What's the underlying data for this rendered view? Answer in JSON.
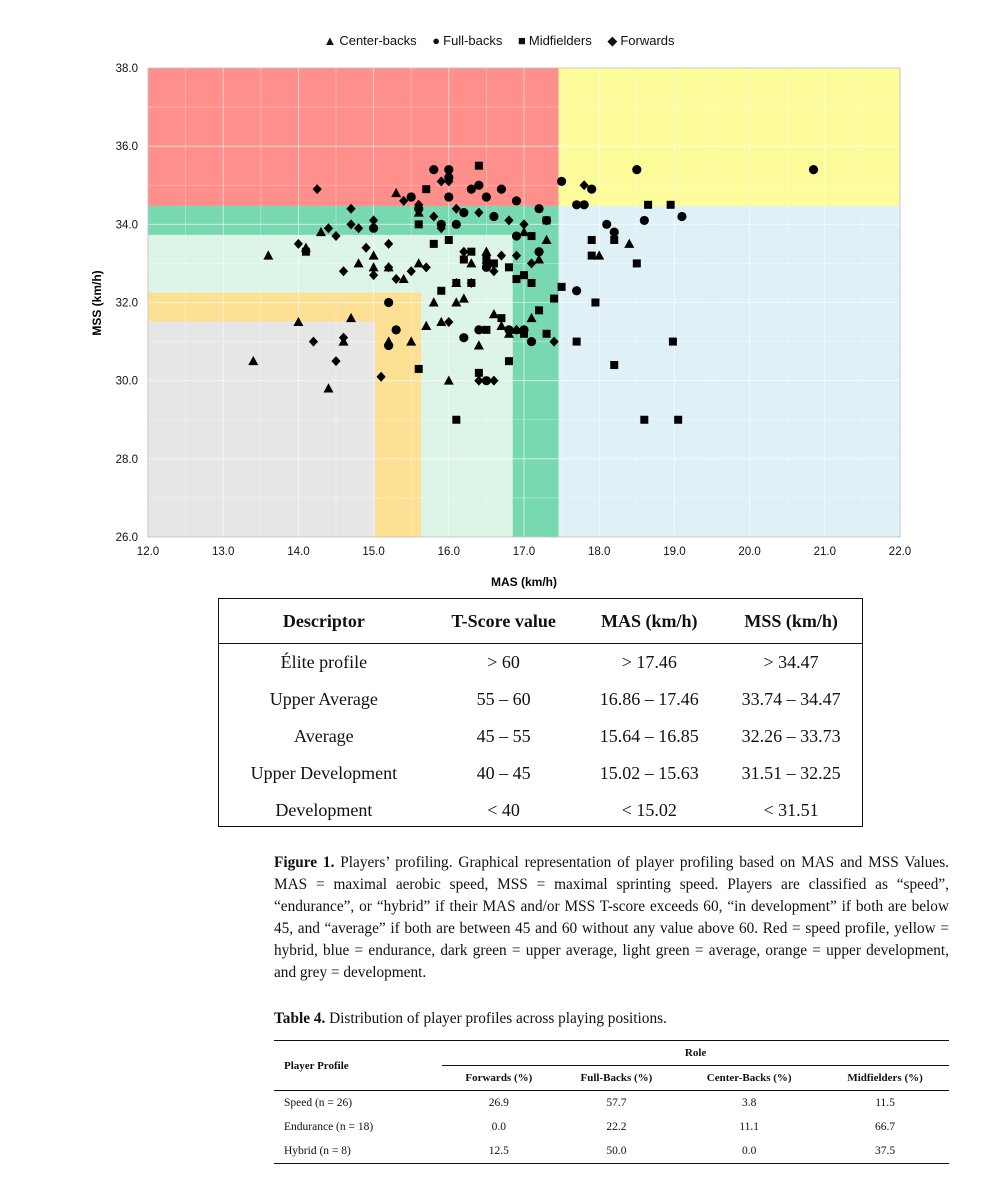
{
  "legend": [
    {
      "symbol": "▲",
      "label": "Center-backs"
    },
    {
      "symbol": "●",
      "label": "Full-backs"
    },
    {
      "symbol": "■",
      "label": "Midfielders"
    },
    {
      "symbol": "◆",
      "label": "Forwards"
    }
  ],
  "chart_data": {
    "type": "scatter",
    "xlabel": "MAS (km/h)",
    "ylabel": "MSS (km/h)",
    "xlim": [
      12.0,
      22.0
    ],
    "ylim": [
      26.0,
      38.0
    ],
    "xticks": [
      "12.0",
      "13.0",
      "14.0",
      "15.0",
      "16.0",
      "17.0",
      "18.0",
      "19.0",
      "20.0",
      "21.0",
      "22.0"
    ],
    "yticks": [
      "26.0",
      "28.0",
      "30.0",
      "32.0",
      "34.0",
      "36.0",
      "38.0"
    ],
    "grid": true,
    "legend_position": "top",
    "zones": [
      {
        "name": "speed",
        "color": "#ff8f8a",
        "x": [
          12.0,
          17.46
        ],
        "y": [
          34.47,
          38.0
        ]
      },
      {
        "name": "hybrid",
        "color": "#fcfc9a",
        "x": [
          17.46,
          22.0
        ],
        "y": [
          34.47,
          38.0
        ]
      },
      {
        "name": "endurance",
        "color": "#dff1f7",
        "x": [
          17.46,
          22.0
        ],
        "y": [
          26.0,
          34.47
        ]
      },
      {
        "name": "development",
        "color": "#e6e6e6",
        "x": [
          12.0,
          15.02
        ],
        "y": [
          26.0,
          31.51
        ]
      },
      {
        "name": "upper development",
        "color": "#fde093",
        "x": [
          12.0,
          15.63
        ],
        "y": [
          26.0,
          32.25
        ]
      },
      {
        "name": "average",
        "color": "#dcf5e6",
        "x": [
          12.0,
          16.85
        ],
        "y": [
          26.0,
          33.73
        ]
      },
      {
        "name": "upper average",
        "color": "#78d9b1",
        "x": [
          12.0,
          17.46
        ],
        "y": [
          26.0,
          34.47
        ]
      },
      {
        "name": "development-core",
        "color": "#e6e6e6",
        "x": [
          12.0,
          15.02
        ],
        "y": [
          26.0,
          31.51
        ]
      },
      {
        "name": "upper-development-core",
        "color": "#fde093",
        "x": [
          12.0,
          15.63
        ],
        "y": [
          26.0,
          32.25
        ]
      },
      {
        "name": "average-core",
        "color": "#dcf5e6",
        "x": [
          12.0,
          16.85
        ],
        "y": [
          26.0,
          33.73
        ]
      }
    ],
    "series": [
      {
        "name": "Center-backs",
        "marker": "triangle",
        "points": [
          [
            13.4,
            30.5
          ],
          [
            13.6,
            33.2
          ],
          [
            14.0,
            31.5
          ],
          [
            14.1,
            33.4
          ],
          [
            14.3,
            33.8
          ],
          [
            14.4,
            29.8
          ],
          [
            14.6,
            31.0
          ],
          [
            14.7,
            31.6
          ],
          [
            14.8,
            33.0
          ],
          [
            15.0,
            33.2
          ],
          [
            15.0,
            32.9
          ],
          [
            15.2,
            32.9
          ],
          [
            15.4,
            32.6
          ],
          [
            15.5,
            31.0
          ],
          [
            15.6,
            33.0
          ],
          [
            15.7,
            31.4
          ],
          [
            15.8,
            32.0
          ],
          [
            15.9,
            31.5
          ],
          [
            16.0,
            30.0
          ],
          [
            16.1,
            32.0
          ],
          [
            16.2,
            32.1
          ],
          [
            16.3,
            33.0
          ],
          [
            16.4,
            30.9
          ],
          [
            16.5,
            33.3
          ],
          [
            16.6,
            31.7
          ],
          [
            16.7,
            31.4
          ],
          [
            16.8,
            31.2
          ],
          [
            16.9,
            31.3
          ],
          [
            17.0,
            33.8
          ],
          [
            17.1,
            31.6
          ],
          [
            17.2,
            33.1
          ],
          [
            17.3,
            33.6
          ],
          [
            18.0,
            33.2
          ],
          [
            18.4,
            33.5
          ],
          [
            15.3,
            34.8
          ],
          [
            15.6,
            34.3
          ],
          [
            15.2,
            31.0
          ],
          [
            16.1,
            32.5
          ]
        ]
      },
      {
        "name": "Full-backs",
        "marker": "circle",
        "points": [
          [
            15.0,
            33.9
          ],
          [
            15.2,
            32.0
          ],
          [
            15.3,
            31.3
          ],
          [
            15.5,
            34.7
          ],
          [
            15.6,
            34.4
          ],
          [
            15.8,
            35.4
          ],
          [
            15.9,
            34.0
          ],
          [
            16.1,
            34.0
          ],
          [
            16.2,
            34.3
          ],
          [
            16.2,
            31.1
          ],
          [
            16.3,
            34.9
          ],
          [
            16.4,
            35.0
          ],
          [
            16.5,
            34.7
          ],
          [
            16.5,
            32.9
          ],
          [
            16.6,
            34.2
          ],
          [
            16.7,
            34.9
          ],
          [
            16.8,
            31.3
          ],
          [
            16.9,
            33.7
          ],
          [
            17.0,
            31.3
          ],
          [
            17.1,
            31.0
          ],
          [
            17.2,
            33.3
          ],
          [
            17.3,
            34.1
          ],
          [
            17.5,
            35.1
          ],
          [
            17.7,
            34.5
          ],
          [
            17.7,
            32.3
          ],
          [
            17.9,
            34.9
          ],
          [
            18.1,
            34.0
          ],
          [
            18.2,
            33.8
          ],
          [
            18.5,
            35.4
          ],
          [
            18.6,
            34.1
          ],
          [
            19.1,
            34.2
          ],
          [
            20.85,
            35.4
          ],
          [
            15.2,
            30.9
          ],
          [
            16.0,
            35.4
          ],
          [
            16.5,
            30.0
          ],
          [
            16.4,
            31.3
          ],
          [
            16.0,
            35.2
          ],
          [
            17.8,
            34.5
          ],
          [
            16.9,
            34.6
          ],
          [
            17.2,
            34.4
          ],
          [
            16.0,
            34.7
          ]
        ]
      },
      {
        "name": "Midfielders",
        "marker": "square",
        "points": [
          [
            14.1,
            33.3
          ],
          [
            15.6,
            30.3
          ],
          [
            15.7,
            34.9
          ],
          [
            15.8,
            33.5
          ],
          [
            15.9,
            32.3
          ],
          [
            16.0,
            33.6
          ],
          [
            16.1,
            32.5
          ],
          [
            16.1,
            29.0
          ],
          [
            16.2,
            33.1
          ],
          [
            16.3,
            33.3
          ],
          [
            16.3,
            32.5
          ],
          [
            16.4,
            30.2
          ],
          [
            16.5,
            33.1
          ],
          [
            16.5,
            31.3
          ],
          [
            16.6,
            33.0
          ],
          [
            16.7,
            31.6
          ],
          [
            16.8,
            30.5
          ],
          [
            16.8,
            32.9
          ],
          [
            16.9,
            32.6
          ],
          [
            17.0,
            32.7
          ],
          [
            17.0,
            31.2
          ],
          [
            17.1,
            32.5
          ],
          [
            17.1,
            33.7
          ],
          [
            17.2,
            31.8
          ],
          [
            17.3,
            34.1
          ],
          [
            17.4,
            32.1
          ],
          [
            17.5,
            32.4
          ],
          [
            17.7,
            31.0
          ],
          [
            17.9,
            33.6
          ],
          [
            17.95,
            32.0
          ],
          [
            18.2,
            33.6
          ],
          [
            18.2,
            30.4
          ],
          [
            18.5,
            33.0
          ],
          [
            18.6,
            29.0
          ],
          [
            18.65,
            34.5
          ],
          [
            18.95,
            34.5
          ],
          [
            18.98,
            31.0
          ],
          [
            19.05,
            29.0
          ],
          [
            15.6,
            34.0
          ],
          [
            16.4,
            35.5
          ],
          [
            17.9,
            33.2
          ],
          [
            17.3,
            31.2
          ]
        ]
      },
      {
        "name": "Forwards",
        "marker": "diamond",
        "points": [
          [
            14.25,
            34.9
          ],
          [
            14.0,
            33.5
          ],
          [
            14.4,
            33.9
          ],
          [
            14.5,
            33.7
          ],
          [
            14.6,
            32.8
          ],
          [
            14.7,
            34.0
          ],
          [
            14.8,
            33.9
          ],
          [
            14.9,
            33.4
          ],
          [
            15.0,
            34.1
          ],
          [
            15.2,
            32.9
          ],
          [
            15.3,
            32.6
          ],
          [
            15.4,
            34.6
          ],
          [
            15.5,
            32.8
          ],
          [
            15.6,
            34.5
          ],
          [
            15.7,
            32.9
          ],
          [
            15.8,
            34.2
          ],
          [
            15.9,
            33.9
          ],
          [
            16.0,
            35.1
          ],
          [
            16.0,
            31.5
          ],
          [
            16.1,
            34.4
          ],
          [
            16.2,
            33.3
          ],
          [
            16.3,
            32.5
          ],
          [
            16.4,
            34.3
          ],
          [
            16.5,
            33.0
          ],
          [
            16.6,
            32.8
          ],
          [
            16.7,
            33.2
          ],
          [
            16.8,
            34.1
          ],
          [
            16.9,
            33.2
          ],
          [
            17.0,
            34.0
          ],
          [
            17.1,
            33.0
          ],
          [
            17.4,
            31.0
          ],
          [
            17.8,
            35.0
          ],
          [
            14.2,
            31.0
          ],
          [
            14.5,
            30.5
          ],
          [
            14.6,
            31.1
          ],
          [
            15.1,
            30.1
          ],
          [
            15.2,
            33.5
          ],
          [
            16.4,
            30.0
          ],
          [
            16.6,
            30.0
          ],
          [
            16.9,
            31.3
          ],
          [
            14.7,
            34.4
          ],
          [
            15.0,
            32.7
          ],
          [
            15.9,
            35.1
          ]
        ]
      }
    ]
  },
  "descriptor_table": {
    "headers": [
      "Descriptor",
      "T-Score value",
      "MAS (km/h)",
      "MSS (km/h)"
    ],
    "rows": [
      [
        "Élite profile",
        "> 60",
        "> 17.46",
        "> 34.47"
      ],
      [
        "Upper Average",
        "55 – 60",
        "16.86 – 17.46",
        "33.74 – 34.47"
      ],
      [
        "Average",
        "45 – 55",
        "15.64 – 16.85",
        "32.26 – 33.73"
      ],
      [
        "Upper Development",
        "40 – 45",
        "15.02 – 15.63",
        "31.51 – 32.25"
      ],
      [
        "Development",
        "< 40",
        "< 15.02",
        "< 31.51"
      ]
    ]
  },
  "figure_caption": {
    "label": "Figure 1.",
    "text": " Players’ profiling. Graphical representation of player profiling based on MAS and MSS Values. MAS = maximal aerobic speed, MSS = maximal sprinting speed. Players are classified as “speed”, “endurance”, or “hybrid” if their MAS and/or MSS T-score exceeds 60, “in development” if both are below 45, and “average” if both are between 45 and 60 without any value above 60. Red = speed profile, yellow = hybrid, blue = endurance, dark green = upper average, light green = average, orange = upper development, and grey = development."
  },
  "table_caption": {
    "label": "Table 4.",
    "text": " Distribution of player profiles across playing positions."
  },
  "distribution_table": {
    "row_header": "Player Profile",
    "group_header": "Role",
    "columns": [
      "Forwards (%)",
      "Full-Backs (%)",
      "Center-Backs (%)",
      "Midfielders (%)"
    ],
    "rows": [
      {
        "label": "Speed (n = 26)",
        "values": [
          "26.9",
          "57.7",
          "3.8",
          "11.5"
        ]
      },
      {
        "label": "Endurance (n = 18)",
        "values": [
          "0.0",
          "22.2",
          "11.1",
          "66.7"
        ]
      },
      {
        "label": "Hybrid (n = 8)",
        "values": [
          "12.5",
          "50.0",
          "0.0",
          "37.5"
        ]
      }
    ]
  }
}
